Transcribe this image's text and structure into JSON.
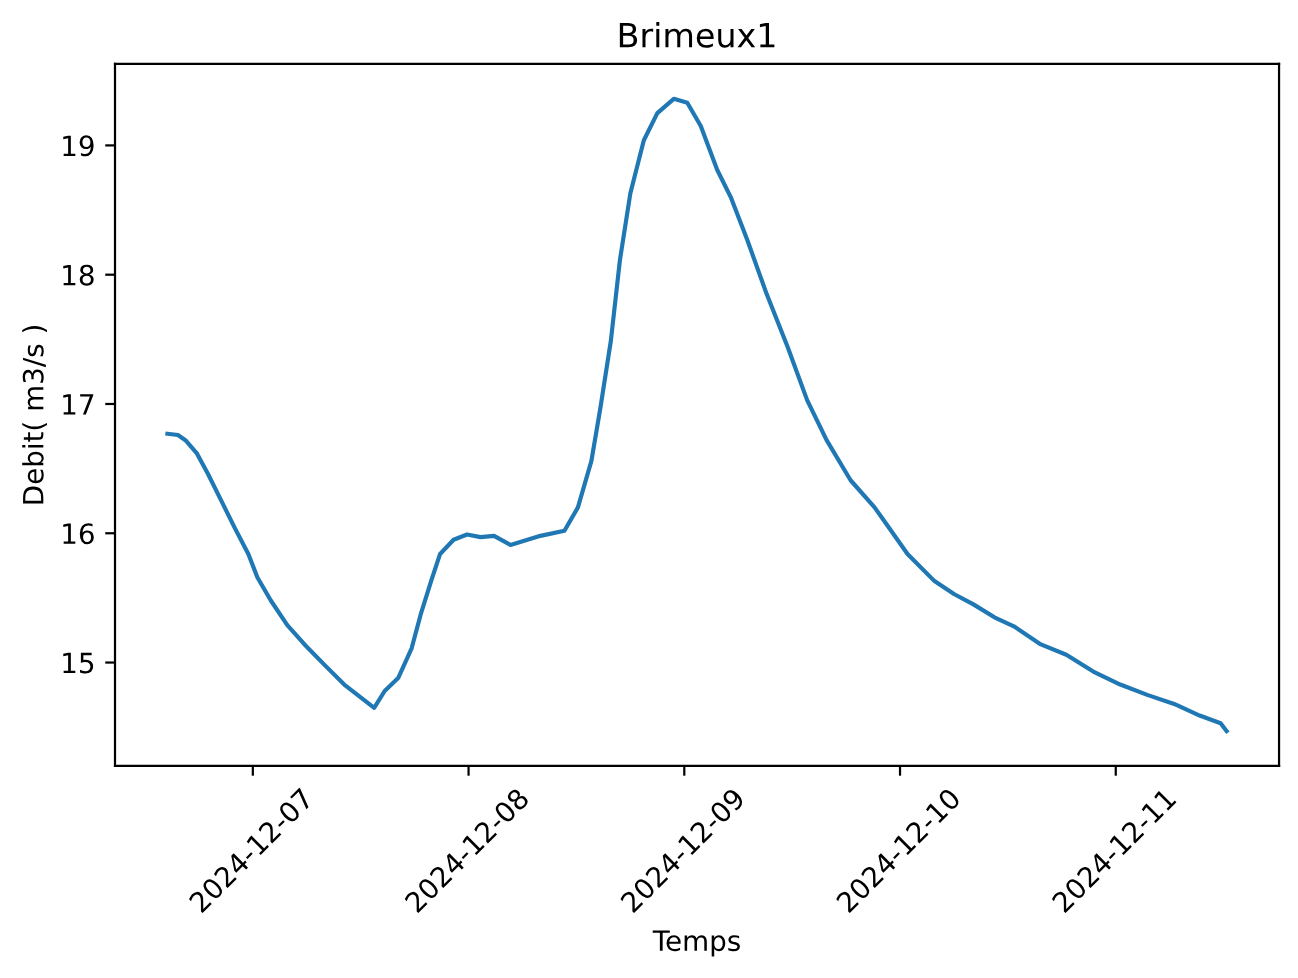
{
  "chart_data": {
    "type": "line",
    "title": "Brimeux1",
    "xlabel": "Temps",
    "ylabel": "Debit( m3/s )",
    "x": [
      "2024-12-06T14:30",
      "2024-12-06T15:40",
      "2024-12-06T16:30",
      "2024-12-06T17:45",
      "2024-12-06T19:00",
      "2024-12-06T20:30",
      "2024-12-06T22:00",
      "2024-12-06T23:30",
      "2024-12-07T00:30",
      "2024-12-07T02:00",
      "2024-12-07T03:50",
      "2024-12-07T05:45",
      "2024-12-07T08:00",
      "2024-12-07T10:10",
      "2024-12-07T12:00",
      "2024-12-07T13:30",
      "2024-12-07T14:40",
      "2024-12-07T16:10",
      "2024-12-07T17:40",
      "2024-12-07T18:40",
      "2024-12-07T19:50",
      "2024-12-07T20:50",
      "2024-12-07T22:20",
      "2024-12-07T23:50",
      "2024-12-08T01:20",
      "2024-12-08T02:50",
      "2024-12-08T04:40",
      "2024-12-08T08:00",
      "2024-12-08T10:40",
      "2024-12-08T12:10",
      "2024-12-08T13:40",
      "2024-12-08T14:40",
      "2024-12-08T15:50",
      "2024-12-08T16:50",
      "2024-12-08T18:00",
      "2024-12-08T19:30",
      "2024-12-08T21:00",
      "2024-12-08T22:50",
      "2024-12-09T00:20",
      "2024-12-09T01:50",
      "2024-12-09T03:40",
      "2024-12-09T05:10",
      "2024-12-09T07:00",
      "2024-12-09T09:10",
      "2024-12-09T11:30",
      "2024-12-09T13:40",
      "2024-12-09T15:50",
      "2024-12-09T18:30",
      "2024-12-09T21:10",
      "2024-12-09T22:30",
      "2024-12-10T00:50",
      "2024-12-10T03:50",
      "2024-12-10T06:00",
      "2024-12-10T08:10",
      "2024-12-10T10:30",
      "2024-12-10T12:40",
      "2024-12-10T15:40",
      "2024-12-10T18:30",
      "2024-12-10T21:30",
      "2024-12-11T00:30",
      "2024-12-11T03:30",
      "2024-12-11T06:30",
      "2024-12-11T09:20",
      "2024-12-11T11:40",
      "2024-12-11T12:20"
    ],
    "series": [
      {
        "color": "#1f77b4",
        "values": [
          16.77,
          16.76,
          16.72,
          16.62,
          16.46,
          16.25,
          16.04,
          15.84,
          15.66,
          15.48,
          15.29,
          15.14,
          14.98,
          14.83,
          14.73,
          14.65,
          14.78,
          14.88,
          15.11,
          15.37,
          15.63,
          15.84,
          15.95,
          15.99,
          15.97,
          15.98,
          15.91,
          15.98,
          16.02,
          16.2,
          16.56,
          16.97,
          17.49,
          18.11,
          18.63,
          19.04,
          19.25,
          19.36,
          19.33,
          19.15,
          18.81,
          18.6,
          18.27,
          17.85,
          17.44,
          17.03,
          16.72,
          16.41,
          16.2,
          16.07,
          15.84,
          15.63,
          15.53,
          15.45,
          15.35,
          15.28,
          15.14,
          15.06,
          14.93,
          14.83,
          14.75,
          14.68,
          14.59,
          14.53,
          14.47
        ]
      }
    ],
    "xlim": [
      "2024-12-06T08:40",
      "2024-12-11T18:10"
    ],
    "xticks": [
      "2024-12-07",
      "2024-12-08",
      "2024-12-09",
      "2024-12-10",
      "2024-12-11"
    ],
    "ylim": [
      14.2,
      19.63
    ],
    "yticks": [
      15,
      16,
      17,
      18,
      19
    ]
  }
}
